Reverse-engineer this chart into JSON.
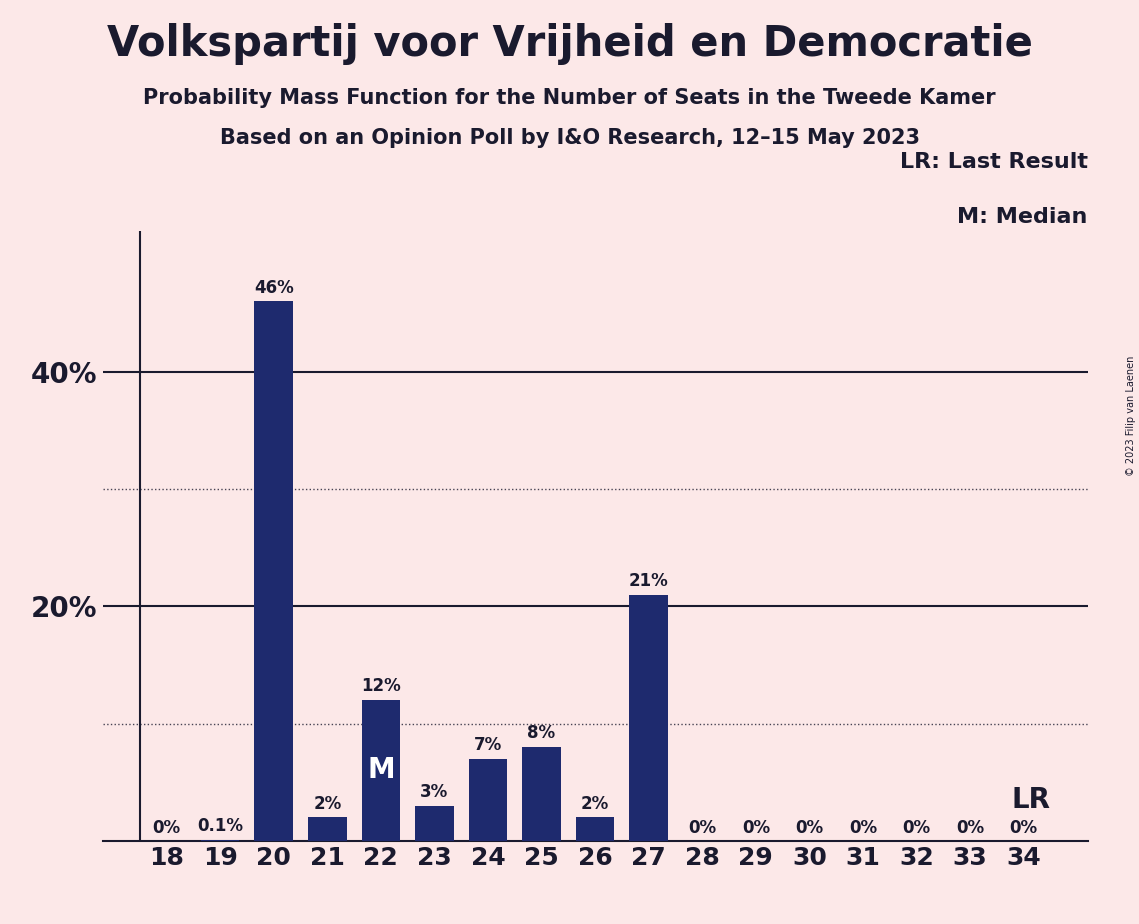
{
  "title1": "Volkspartij voor Vrijheid en Democratie",
  "title2": "Probability Mass Function for the Number of Seats in the Tweede Kamer",
  "title3": "Based on an Opinion Poll by I&O Research, 12–15 May 2023",
  "copyright": "© 2023 Filip van Laenen",
  "categories": [
    18,
    19,
    20,
    21,
    22,
    23,
    24,
    25,
    26,
    27,
    28,
    29,
    30,
    31,
    32,
    33,
    34
  ],
  "values": [
    0,
    0.1,
    46,
    2,
    12,
    3,
    7,
    8,
    2,
    21,
    0,
    0,
    0,
    0,
    0,
    0,
    0
  ],
  "labels": [
    "0%",
    "0.1%",
    "46%",
    "2%",
    "12%",
    "3%",
    "7%",
    "8%",
    "2%",
    "21%",
    "0%",
    "0%",
    "0%",
    "0%",
    "0%",
    "0%",
    "0%"
  ],
  "bar_color": "#1e2a6e",
  "background_color": "#fce8e8",
  "text_color": "#1a1a2e",
  "median_bar": 22,
  "last_result_bar": 34,
  "solid_yticks": [
    20,
    40
  ],
  "dotted_yticks": [
    10,
    30
  ],
  "ylim": [
    0,
    52
  ],
  "legend_lr": "LR: Last Result",
  "legend_m": "M: Median",
  "lr_label": "LR",
  "m_label": "M"
}
